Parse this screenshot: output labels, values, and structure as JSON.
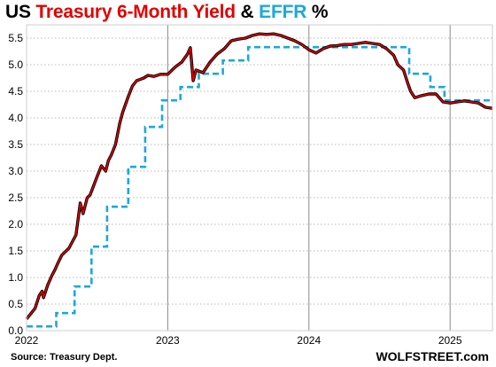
{
  "chart_data": {
    "type": "line",
    "title_parts": [
      {
        "text": "US ",
        "color": "#000000"
      },
      {
        "text": "Treasury 6-Month Yield",
        "color": "#e00000"
      },
      {
        "text": " & ",
        "color": "#000000"
      },
      {
        "text": "EFFR",
        "color": "#1aa8dc"
      },
      {
        "text": " %",
        "color": "#000000"
      }
    ],
    "xlabel": "",
    "ylabel": "",
    "x_range": [
      2022.0,
      2025.3
    ],
    "ylim": [
      0.0,
      5.75
    ],
    "y_ticks": [
      "0.0",
      "0.5",
      "1.0",
      "1.5",
      "2.0",
      "2.5",
      "3.0",
      "3.5",
      "4.0",
      "4.5",
      "5.0",
      "5.5"
    ],
    "x_ticks": [
      {
        "value": 2022,
        "label": "2022"
      },
      {
        "value": 2023,
        "label": "2023"
      },
      {
        "value": 2024,
        "label": "2024"
      },
      {
        "value": 2025,
        "label": "2025"
      }
    ],
    "grid": {
      "horizontal": true,
      "vertical_year_lines": true
    },
    "series": [
      {
        "name": "Treasury 6-Month Yield",
        "color": "#e00000",
        "style": "solid",
        "x": [
          2022.0,
          2022.03,
          2022.06,
          2022.09,
          2022.11,
          2022.12,
          2022.15,
          2022.18,
          2022.2,
          2022.22,
          2022.25,
          2022.3,
          2022.35,
          2022.38,
          2022.4,
          2022.43,
          2022.45,
          2022.5,
          2022.53,
          2022.56,
          2022.58,
          2022.6,
          2022.63,
          2022.66,
          2022.68,
          2022.72,
          2022.75,
          2022.78,
          2022.8,
          2022.83,
          2022.86,
          2022.9,
          2022.95,
          2023.0,
          2023.05,
          2023.1,
          2023.14,
          2023.16,
          2023.18,
          2023.2,
          2023.25,
          2023.3,
          2023.35,
          2023.4,
          2023.45,
          2023.5,
          2023.55,
          2023.6,
          2023.65,
          2023.7,
          2023.75,
          2023.8,
          2023.85,
          2023.9,
          2023.95,
          2024.0,
          2024.05,
          2024.1,
          2024.15,
          2024.2,
          2024.25,
          2024.3,
          2024.35,
          2024.4,
          2024.45,
          2024.5,
          2024.55,
          2024.6,
          2024.63,
          2024.67,
          2024.7,
          2024.72,
          2024.75,
          2024.8,
          2024.85,
          2024.9,
          2024.95,
          2025.0,
          2025.05,
          2025.1,
          2025.15,
          2025.2,
          2025.25,
          2025.3
        ],
        "values": [
          0.22,
          0.32,
          0.42,
          0.66,
          0.74,
          0.62,
          0.86,
          1.04,
          1.14,
          1.26,
          1.42,
          1.55,
          1.8,
          2.4,
          2.2,
          2.5,
          2.55,
          2.9,
          3.1,
          3.0,
          3.2,
          3.3,
          3.5,
          3.9,
          4.1,
          4.4,
          4.6,
          4.7,
          4.72,
          4.75,
          4.8,
          4.78,
          4.82,
          4.82,
          4.95,
          5.05,
          5.2,
          5.32,
          4.7,
          4.9,
          4.85,
          5.05,
          5.2,
          5.3,
          5.45,
          5.48,
          5.5,
          5.55,
          5.58,
          5.57,
          5.58,
          5.55,
          5.5,
          5.45,
          5.38,
          5.28,
          5.22,
          5.3,
          5.35,
          5.36,
          5.38,
          5.38,
          5.4,
          5.42,
          5.4,
          5.38,
          5.3,
          5.18,
          5.0,
          4.9,
          4.65,
          4.5,
          4.38,
          4.42,
          4.45,
          4.45,
          4.3,
          4.28,
          4.3,
          4.32,
          4.3,
          4.28,
          4.2,
          4.18
        ]
      },
      {
        "name": "EFFR",
        "color": "#1aa8dc",
        "style": "dashed-step",
        "x": [
          2022.0,
          2022.21,
          2022.34,
          2022.46,
          2022.57,
          2022.72,
          2022.84,
          2022.96,
          2023.09,
          2023.22,
          2023.39,
          2023.57,
          2024.71,
          2024.86,
          2024.96,
          2025.3
        ],
        "values": [
          0.08,
          0.33,
          0.83,
          1.58,
          2.33,
          3.08,
          3.83,
          4.33,
          4.58,
          4.83,
          5.08,
          5.33,
          4.83,
          4.58,
          4.33,
          4.33
        ]
      }
    ]
  },
  "source_note": "Source: Treasury Dept.",
  "brand": "WOLFSTREET.com"
}
